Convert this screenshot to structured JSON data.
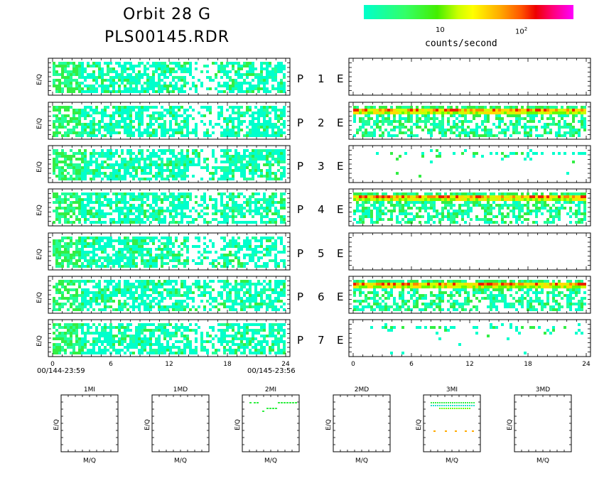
{
  "header": {
    "title_line1": "Orbit 28 G",
    "title_line2": "PLS00145.RDR"
  },
  "colorbar": {
    "label": "counts/second",
    "tick_10": "10",
    "tick_100_base": "10",
    "tick_100_exp": "2",
    "colors": [
      "#00ffcc",
      "#44ee00",
      "#ffff00",
      "#ff5500",
      "#ee0000",
      "#ff00ff"
    ]
  },
  "panel_labels": {
    "rows": [
      {
        "p": "P",
        "n": "1",
        "e": "E"
      },
      {
        "p": "P",
        "n": "2",
        "e": "E"
      },
      {
        "p": "P",
        "n": "3",
        "e": "E"
      },
      {
        "p": "P",
        "n": "4",
        "e": "E"
      },
      {
        "p": "P",
        "n": "5",
        "e": "E"
      },
      {
        "p": "P",
        "n": "6",
        "e": "E"
      },
      {
        "p": "P",
        "n": "7",
        "e": "E"
      }
    ]
  },
  "dates": {
    "start": "00/144-23:59",
    "end": "00/145-23:56"
  },
  "chart_data": [
    {
      "type": "heatmap",
      "name": "E/Q spectrograms (P channels 1-7, left column)",
      "ylabel": "E/Q",
      "x_ticks": [
        "0",
        "6",
        "12",
        "18",
        "24"
      ],
      "xlim": [
        0,
        24
      ],
      "rows": 7,
      "intensity": [
        "low",
        "low",
        "low",
        "low",
        "low",
        "low",
        "low"
      ]
    },
    {
      "type": "heatmap",
      "name": "E/Q spectrograms (E channels 1-7, right column)",
      "x_ticks": [
        "0",
        "6",
        "12",
        "18",
        "24"
      ],
      "xlim": [
        0,
        24
      ],
      "rows": 7,
      "intensity": [
        "none",
        "high",
        "sparse",
        "high",
        "none",
        "high",
        "sparse"
      ]
    },
    {
      "type": "scatter",
      "name": "M/Q panels",
      "xlabel": "M/Q",
      "ylabel": "E/Q",
      "panels": [
        {
          "title": "1MI",
          "has_data": false
        },
        {
          "title": "1MD",
          "has_data": false
        },
        {
          "title": "2MI",
          "has_data": true
        },
        {
          "title": "2MD",
          "has_data": false
        },
        {
          "title": "3MI",
          "has_data": true
        },
        {
          "title": "3MD",
          "has_data": false
        }
      ]
    }
  ]
}
